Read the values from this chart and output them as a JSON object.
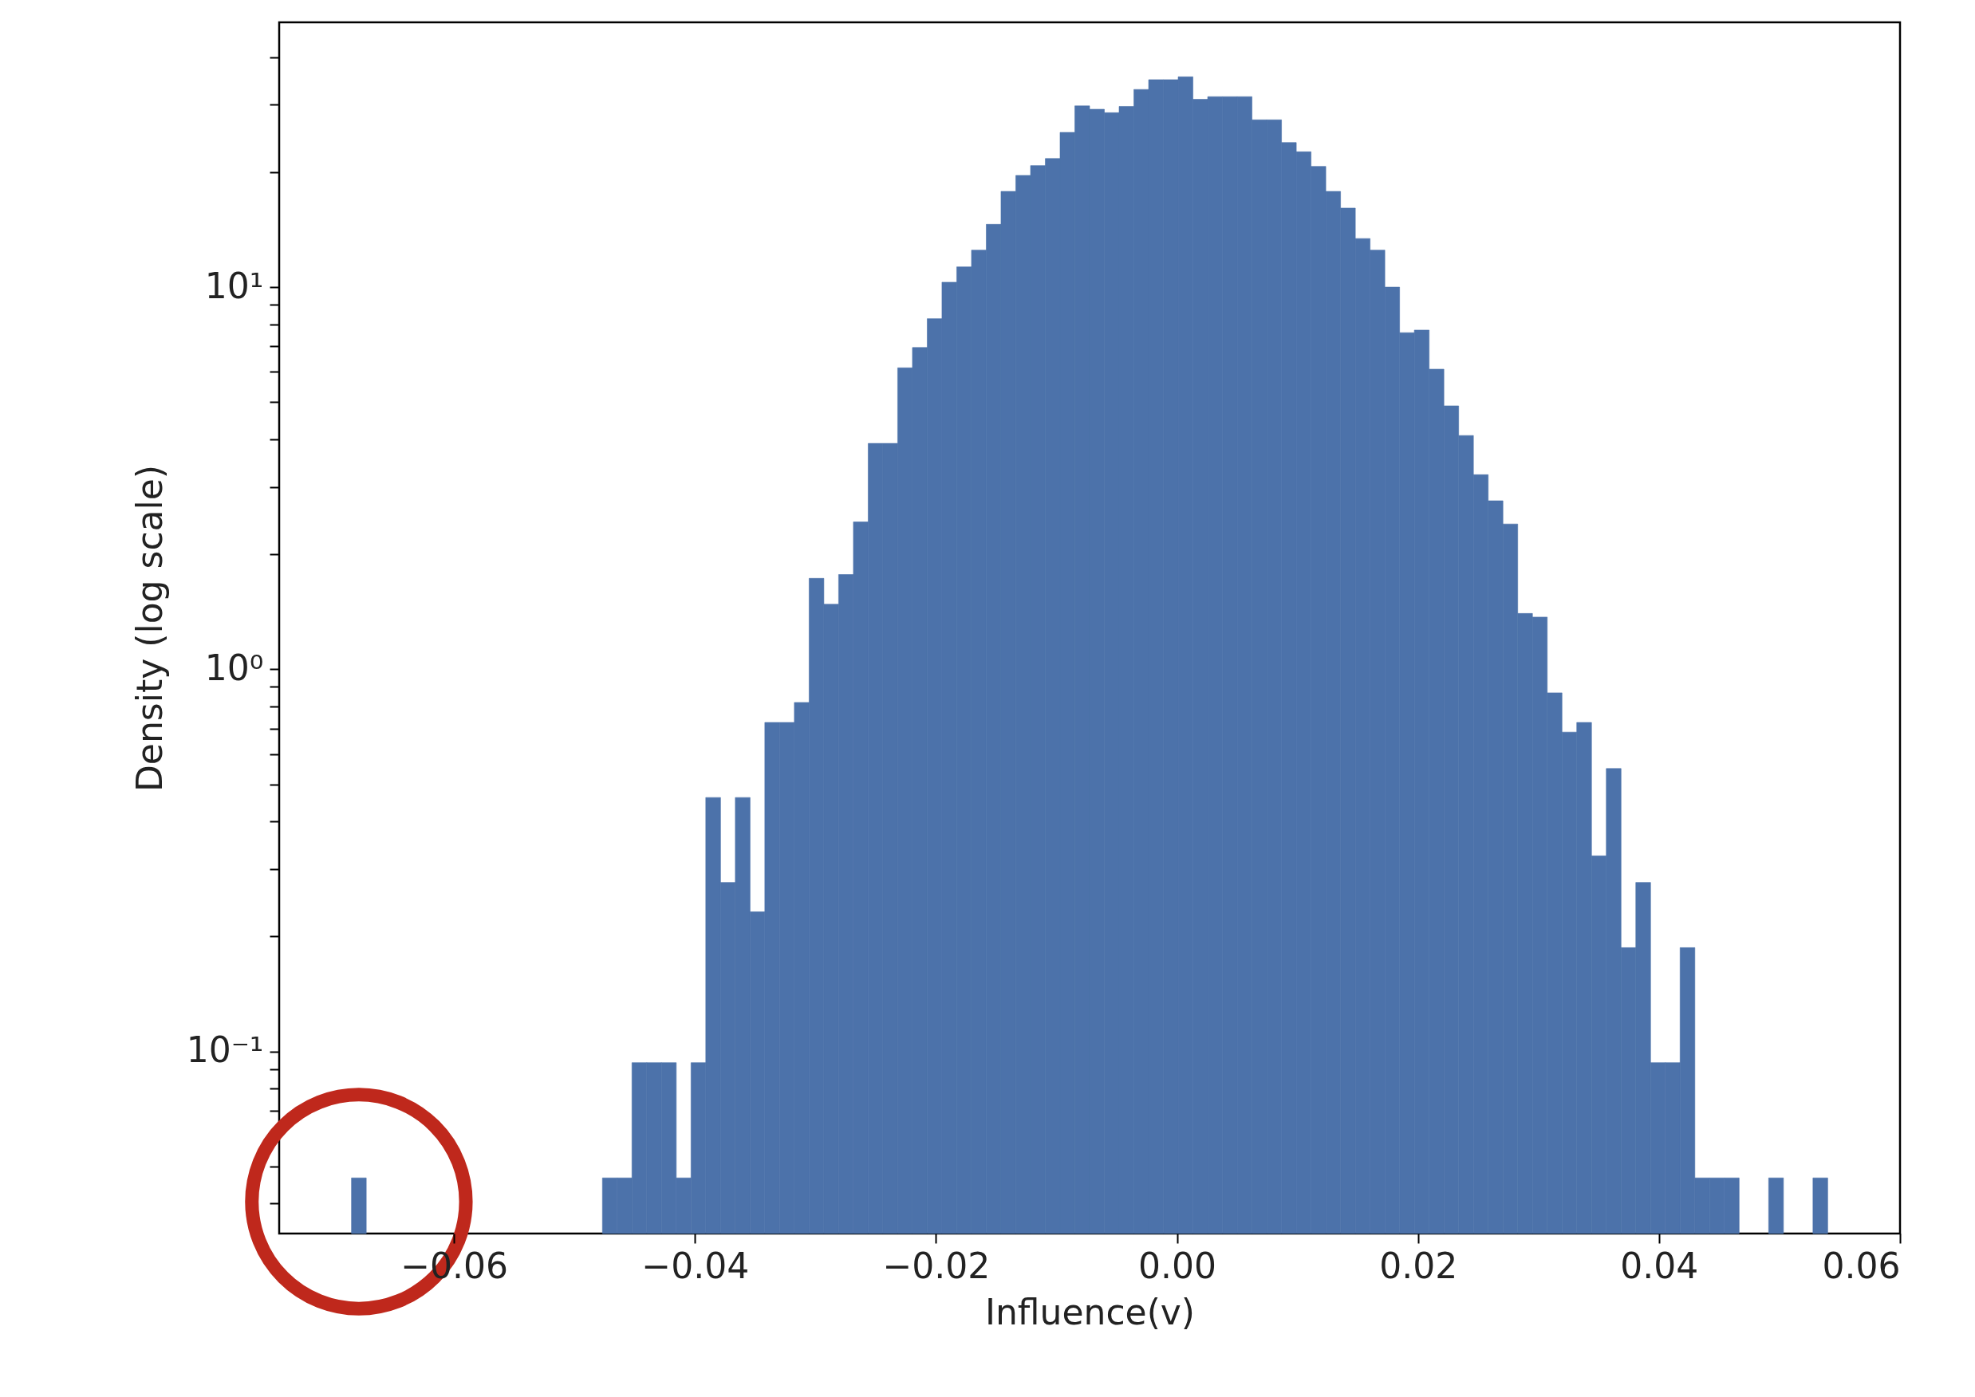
{
  "chart_data": {
    "type": "histogram",
    "xlabel": "Influence(v)",
    "ylabel": "Density (log scale)",
    "color": "#4c72aa",
    "log": "y",
    "xlim": [
      -0.0745,
      0.06
    ],
    "ylim": [
      0.0334,
      49.3
    ],
    "xticks": [
      {
        "value": -0.06,
        "label": "−0.06"
      },
      {
        "value": -0.04,
        "label": "−0.04"
      },
      {
        "value": -0.02,
        "label": "−0.02"
      },
      {
        "value": 0,
        "label": "0.00"
      },
      {
        "value": 0.02,
        "label": "0.02"
      },
      {
        "value": 0.04,
        "label": "0.04"
      },
      {
        "value": 0.06,
        "label": "0.06"
      }
    ],
    "yticks": [
      {
        "value": 0.04,
        "label": null
      },
      {
        "value": 0.05,
        "label": null
      },
      {
        "value": 0.06,
        "label": null
      },
      {
        "value": 0.07,
        "label": null
      },
      {
        "value": 0.08,
        "label": null
      },
      {
        "value": 0.09,
        "label": null
      },
      {
        "value": 0.1,
        "label": "10⁻¹"
      },
      {
        "value": 0.2,
        "label": null
      },
      {
        "value": 0.3,
        "label": null
      },
      {
        "value": 0.4,
        "label": null
      },
      {
        "value": 0.5,
        "label": null
      },
      {
        "value": 0.6,
        "label": null
      },
      {
        "value": 0.7,
        "label": null
      },
      {
        "value": 0.8,
        "label": null
      },
      {
        "value": 0.9,
        "label": null
      },
      {
        "value": 1,
        "label": "10⁰"
      },
      {
        "value": 2,
        "label": null
      },
      {
        "value": 3,
        "label": null
      },
      {
        "value": 4,
        "label": null
      },
      {
        "value": 5,
        "label": null
      },
      {
        "value": 6,
        "label": null
      },
      {
        "value": 7,
        "label": null
      },
      {
        "value": 8,
        "label": null
      },
      {
        "value": 9,
        "label": null
      },
      {
        "value": 10,
        "label": "10¹"
      },
      {
        "value": 20,
        "label": null
      },
      {
        "value": 30,
        "label": null
      },
      {
        "value": 40,
        "label": null
      }
    ],
    "bins": [
      -0.0685,
      -0.067275,
      -0.06605,
      -0.064825,
      -0.0636,
      -0.062375,
      -0.06115,
      -0.059925,
      -0.0587,
      -0.057475,
      -0.05625,
      -0.055025,
      -0.0538,
      -0.052575,
      -0.05135,
      -0.050125,
      -0.0489,
      -0.047675,
      -0.04645,
      -0.045225,
      -0.044,
      -0.042775,
      -0.04155,
      -0.040325,
      -0.0391,
      -0.037875,
      -0.03665,
      -0.035425,
      -0.0342,
      -0.032975,
      -0.03175,
      -0.030525,
      -0.0293,
      -0.028075,
      -0.02685,
      -0.025625,
      -0.0244,
      -0.023175,
      -0.02195,
      -0.020725,
      -0.0195,
      -0.018275,
      -0.01705,
      -0.015825,
      -0.0146,
      -0.013375,
      -0.01215,
      -0.010925,
      -0.0097,
      -0.008475,
      -0.00725,
      -0.006025,
      -0.0048,
      -0.003575,
      -0.00235,
      -0.001125,
      0.0001,
      0.001325,
      0.00255,
      0.003775,
      0.005,
      0.006225,
      0.00745,
      0.008675,
      0.0099,
      0.011125,
      0.01235,
      0.013575,
      0.0148,
      0.016025,
      0.01725,
      0.018475,
      0.0197,
      0.020925,
      0.02215,
      0.023375,
      0.0246,
      0.025825,
      0.02705,
      0.028275,
      0.0295,
      0.030725,
      0.03195,
      0.033175,
      0.0344,
      0.035625,
      0.03685,
      0.038075,
      0.0393,
      0.040525,
      0.04175,
      0.042975,
      0.0442,
      0.045425,
      0.04665,
      0.047875,
      0.0491,
      0.050325,
      0.05155,
      0.052775,
      0.054
    ],
    "values": [
      0.0467,
      null,
      null,
      null,
      null,
      null,
      null,
      null,
      null,
      null,
      null,
      null,
      null,
      null,
      null,
      null,
      null,
      0.0467,
      0.0467,
      0.0935,
      0.0935,
      0.0935,
      0.0467,
      0.0935,
      0.462,
      0.277,
      0.462,
      0.232,
      0.726,
      0.726,
      0.819,
      1.73,
      1.48,
      1.77,
      2.43,
      3.9,
      3.9,
      6.15,
      6.95,
      8.27,
      10.3,
      11.3,
      12.5,
      14.6,
      17.8,
      19.6,
      20.8,
      21.7,
      25.4,
      29.8,
      29.2,
      28.6,
      29.7,
      32.9,
      34.9,
      34.9,
      35.5,
      31.0,
      31.5,
      31.5,
      31.5,
      27.4,
      27.4,
      23.9,
      22.6,
      20.7,
      17.8,
      16.1,
      13.4,
      12.5,
      10.0,
      7.6,
      7.72,
      6.1,
      4.89,
      4.09,
      3.23,
      2.76,
      2.4,
      1.4,
      1.37,
      0.868,
      0.685,
      0.726,
      0.325,
      0.55,
      0.187,
      0.277,
      0.0935,
      0.0935,
      0.187,
      0.0467,
      0.0467,
      0.0467,
      null,
      null,
      0.0467,
      null,
      null,
      0.0467
    ]
  }
}
